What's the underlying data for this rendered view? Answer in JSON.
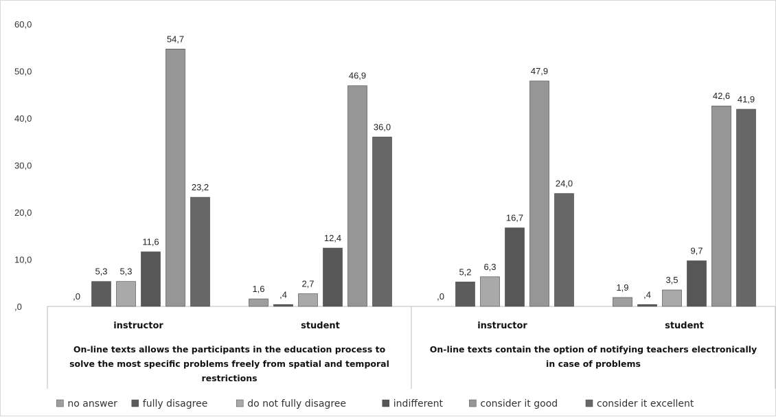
{
  "chart_data": {
    "type": "bar",
    "ylim": [
      0,
      60
    ],
    "yticks": [
      "60,0",
      "50,0",
      "40,0",
      "30,0",
      "20,0",
      "10,0",
      ",0"
    ],
    "ytick_values": [
      60,
      50,
      40,
      30,
      20,
      10,
      0
    ],
    "grid": false,
    "legend_position": "bottom",
    "groups": [
      {
        "label_lines": [
          "On-line texts allows the participants in the education process to",
          "solve the most specific problems freely from spatial and temporal",
          "restrictions"
        ],
        "categories": [
          "instructor",
          "student"
        ]
      },
      {
        "label_lines": [
          "On-line texts contain the option of notifying teachers electronically",
          "in case of problems"
        ],
        "categories": [
          "instructor",
          "student"
        ]
      }
    ],
    "categories": [
      "instructor",
      "student",
      "instructor",
      "student"
    ],
    "series": [
      {
        "name": "no answer",
        "color": "#9e9e9e",
        "values": [
          0.0,
          1.6,
          0.0,
          1.9
        ],
        "labels": [
          ",0",
          "1,6",
          ",0",
          "1,9"
        ]
      },
      {
        "name": "fully disagree",
        "color": "#5c5c5c",
        "values": [
          5.3,
          0.4,
          5.2,
          0.4
        ],
        "labels": [
          "5,3",
          ",4",
          "5,2",
          ",4"
        ]
      },
      {
        "name": "do not fully disagree",
        "color": "#a9a9a9",
        "values": [
          5.3,
          2.7,
          6.3,
          3.5
        ],
        "labels": [
          "5,3",
          "2,7",
          "6,3",
          "3,5"
        ]
      },
      {
        "name": "indifferent",
        "color": "#575757",
        "values": [
          11.6,
          12.4,
          16.7,
          9.7
        ],
        "labels": [
          "11,6",
          "12,4",
          "16,7",
          "9,7"
        ]
      },
      {
        "name": "consider it good",
        "color": "#969696",
        "values": [
          54.7,
          46.9,
          47.9,
          42.6
        ],
        "labels": [
          "54,7",
          "46,9",
          "47,9",
          "42,6"
        ]
      },
      {
        "name": "consider it excellent",
        "color": "#676767",
        "values": [
          23.2,
          36.0,
          24.0,
          41.9
        ],
        "labels": [
          "23,2",
          "36,0",
          "24,0",
          "41,9"
        ]
      }
    ]
  }
}
